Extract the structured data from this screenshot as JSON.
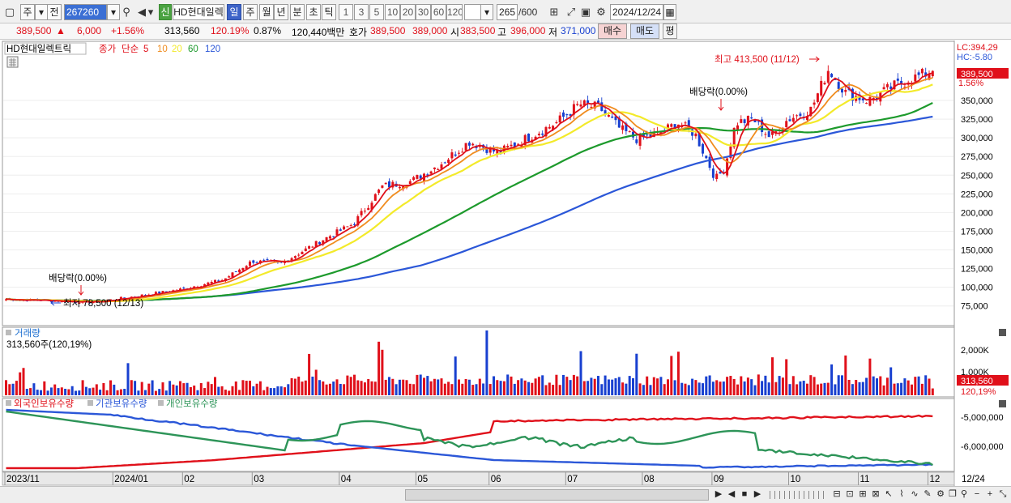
{
  "toolbar": {
    "market_label": "주",
    "prev_label": "전",
    "code": "267260",
    "new_badge": "신",
    "stock_name": "HD현대일렉",
    "periods": [
      "일",
      "주",
      "월",
      "년",
      "분",
      "초",
      "틱"
    ],
    "active_period": "일",
    "intervals": [
      "1",
      "3",
      "5",
      "10",
      "20",
      "30",
      "60",
      "120"
    ],
    "count": "265",
    "count_max": "/600",
    "date": "2024/12/24"
  },
  "quote": {
    "price": "389,500",
    "change_arrow": "▲",
    "change": "6,000",
    "change_pct": "+1.56%",
    "volume": "313,560",
    "vol_ratio": "120.19%",
    "turnover": "0.87%",
    "amount": "120,440백만",
    "bid_label": "호가",
    "ask": "389,500",
    "bid": "389,000",
    "open_label": "시",
    "open": "383,500",
    "high_label": "고",
    "high": "396,000",
    "low_label": "저",
    "low": "371,000",
    "buy_label": "매수",
    "sell_label": "매도",
    "avg_label": "평"
  },
  "colors": {
    "candle_up": "#e0101a",
    "candle_down": "#1840d0",
    "ma5": "#e0101a",
    "ma10": "#f08c1e",
    "ma20": "#f3ea2a",
    "ma60": "#1d9a2c",
    "ma120": "#2b57d8",
    "foreign": "#e0101a",
    "institution": "#2b57d8",
    "individual": "#2d9458"
  },
  "chart_data": [
    {
      "type": "candlestick",
      "title": "HD현대일렉트릭",
      "legend": {
        "close_label": "종가",
        "ma_label": "단순",
        "ma_periods": [
          "5",
          "10",
          "20",
          "60",
          "120"
        ]
      },
      "y_ticks": [
        "350,000",
        "325,000",
        "300,000",
        "275,000",
        "250,000",
        "225,000",
        "200,000",
        "175,000",
        "150,000",
        "125,000",
        "100,000",
        "75,000"
      ],
      "ylim": [
        53000,
        414000
      ],
      "lc_label": "LC:394,29",
      "hc_label": "HC:-5.80",
      "last_price_tag": "389,500",
      "last_pct_tag": "1.56%",
      "annotations": {
        "high": "최고 413,500 (11/12)",
        "low": "최저 78,500 (12/13)",
        "dividend_1": "배당락(0.00%)",
        "dividend_2": "배당락(0.00%)"
      },
      "close_path": [
        [
          0,
          84000
        ],
        [
          30,
          80000
        ],
        [
          45,
          88000
        ],
        [
          60,
          97000
        ],
        [
          75,
          110000
        ],
        [
          85,
          135000
        ],
        [
          95,
          132000
        ],
        [
          110,
          165000
        ],
        [
          120,
          185000
        ],
        [
          130,
          235000
        ],
        [
          140,
          242000
        ],
        [
          150,
          265000
        ],
        [
          160,
          295000
        ],
        [
          170,
          280000
        ],
        [
          180,
          300000
        ],
        [
          190,
          320000
        ],
        [
          198,
          345000
        ],
        [
          205,
          340000
        ],
        [
          212,
          312000
        ],
        [
          218,
          298000
        ],
        [
          225,
          305000
        ],
        [
          232,
          320000
        ],
        [
          238,
          305000
        ],
        [
          245,
          245000
        ],
        [
          248,
          258000
        ],
        [
          252,
          320000
        ],
        [
          258,
          325000
        ],
        [
          264,
          300000
        ],
        [
          270,
          325000
        ],
        [
          278,
          338000
        ],
        [
          284,
          392000
        ],
        [
          290,
          360000
        ],
        [
          298,
          350000
        ],
        [
          306,
          368000
        ],
        [
          312,
          378000
        ],
        [
          320,
          389500
        ]
      ],
      "volume": {
        "label": "거래량",
        "value_label": "313,560주(120,19%)",
        "y_ticks": [
          "2,000K",
          "1,000K"
        ],
        "last_tag": "313,560",
        "last_pct": "120,19%"
      }
    },
    {
      "type": "line",
      "series_labels": [
        "외국인보유수량",
        "기관보유수량",
        "개인보유수량"
      ],
      "y_ticks": [
        "-5,000,000",
        "-6,000,000"
      ]
    }
  ],
  "x_axis": {
    "labels": [
      "2023/11",
      "2024/01",
      "02",
      "03",
      "04",
      "05",
      "06",
      "07",
      "08",
      "09",
      "10",
      "11",
      "12"
    ],
    "label_index": [
      0,
      31,
      51,
      71,
      96,
      118,
      139,
      161,
      183,
      203,
      225,
      245,
      265
    ],
    "right_label": "12/24"
  }
}
